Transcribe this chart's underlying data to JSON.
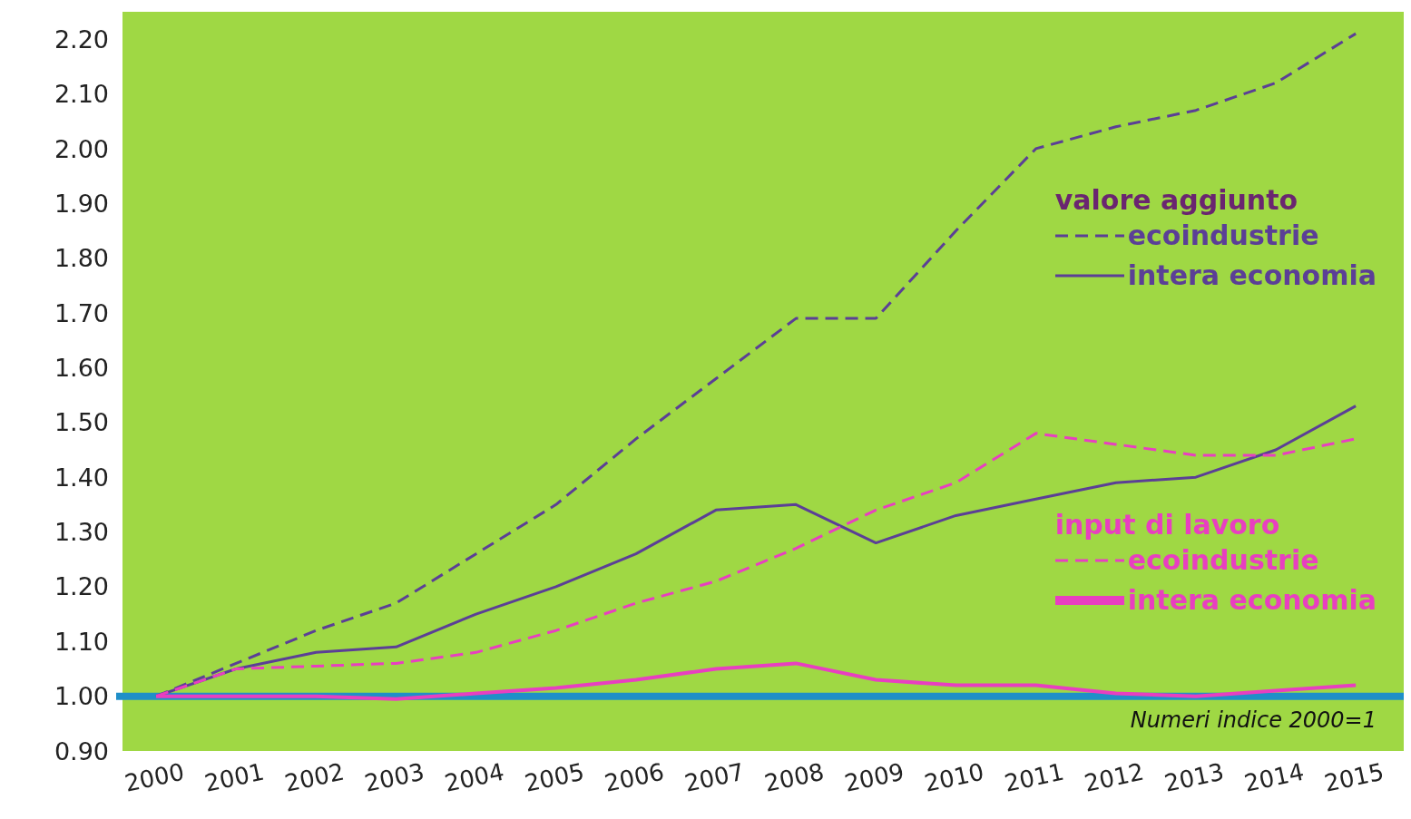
{
  "chart_data": {
    "type": "line",
    "categories": [
      "2000",
      "2001",
      "2002",
      "2003",
      "2004",
      "2005",
      "2006",
      "2007",
      "2008",
      "2009",
      "2010",
      "2011",
      "2012",
      "2013",
      "2014",
      "2015"
    ],
    "series": [
      {
        "name": "ecoindustrie",
        "color": "#5b3f96",
        "line_style": "dashed",
        "values": [
          1.0,
          1.06,
          1.12,
          1.17,
          1.26,
          1.35,
          1.47,
          1.58,
          1.69,
          1.69,
          1.85,
          2.0,
          2.04,
          2.07,
          2.12,
          2.21
        ]
      },
      {
        "name": "intera economia",
        "color": "#5b3f96",
        "line_style": "solid",
        "values": [
          1.0,
          1.05,
          1.08,
          1.09,
          1.15,
          1.2,
          1.26,
          1.34,
          1.35,
          1.28,
          1.33,
          1.36,
          1.39,
          1.4,
          1.45,
          1.53
        ]
      },
      {
        "name": "ecoindustrie",
        "color": "#e83fc0",
        "line_style": "dashed",
        "values": [
          1.0,
          1.05,
          1.055,
          1.06,
          1.08,
          1.12,
          1.17,
          1.21,
          1.27,
          1.34,
          1.39,
          1.48,
          1.46,
          1.44,
          1.44,
          1.47
        ]
      },
      {
        "name": "intera economia",
        "color": "#e83fc0",
        "line_style": "solid",
        "values": [
          1.0,
          1.0,
          1.0,
          0.995,
          1.005,
          1.015,
          1.03,
          1.05,
          1.06,
          1.03,
          1.02,
          1.02,
          1.005,
          1.0,
          1.01,
          1.02
        ]
      }
    ],
    "ylim": [
      0.9,
      2.25
    ],
    "yticks": [
      {
        "value": 0.9,
        "label": "0.90"
      },
      {
        "value": 1,
        "label": "1.00"
      },
      {
        "value": 1.1,
        "label": "1.10"
      },
      {
        "value": 1.2,
        "label": "1.20"
      },
      {
        "value": 1.3,
        "label": "1.30"
      },
      {
        "value": 1.4,
        "label": "1.40"
      },
      {
        "value": 1.5,
        "label": "1.50"
      },
      {
        "value": 1.6,
        "label": "1.60"
      },
      {
        "value": 1.7,
        "label": "1.70"
      },
      {
        "value": 1.8,
        "label": "1.80"
      },
      {
        "value": 1.9,
        "label": "1.90"
      },
      {
        "value": 2.0,
        "label": "2.00"
      },
      {
        "value": 2.1,
        "label": "2.10"
      },
      {
        "value": 2.2,
        "label": "2.20"
      }
    ],
    "ref_lines": [
      {
        "axis": "y",
        "value": 1,
        "color": "#1f8fc8"
      }
    ],
    "annotations": [
      "valore aggiunto",
      "input di lavoro",
      "Numeri indice 2000=1"
    ],
    "legend": "right",
    "grid": false,
    "marker": "none"
  }
}
